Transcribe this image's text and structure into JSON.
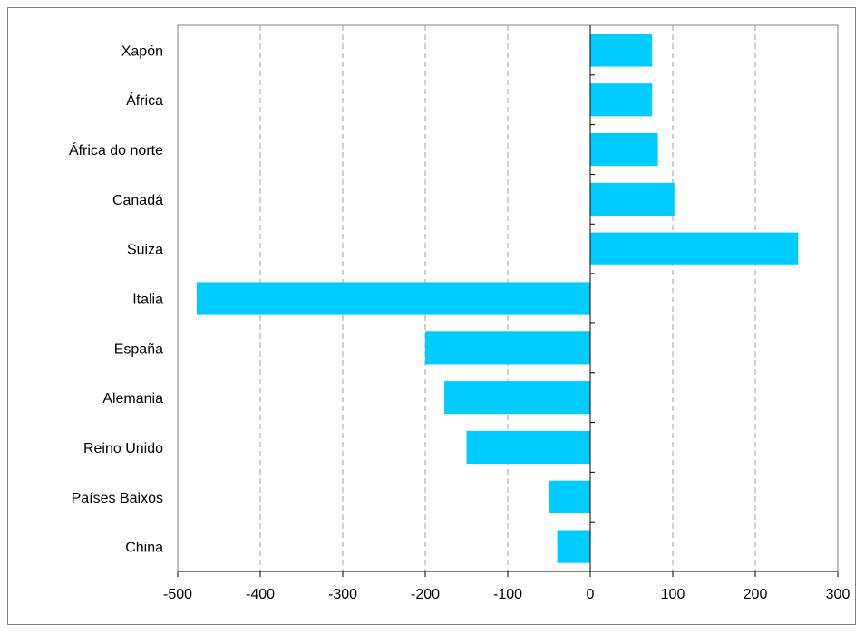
{
  "chart_data": {
    "type": "bar",
    "orientation": "horizontal",
    "categories": [
      "Xapón",
      "África",
      "África do norte",
      "Canadá",
      "Suiza",
      "Italia",
      "España",
      "Alemania",
      "Reino Unido",
      "Países Baixos",
      "China"
    ],
    "values": [
      75,
      75,
      82,
      102,
      252,
      -477,
      -200,
      -177,
      -150,
      -50,
      -40
    ],
    "xlim": [
      -500,
      300
    ],
    "xticks": [
      "-500",
      "-400",
      "-300",
      "-200",
      "-100",
      "0",
      "100",
      "200",
      "300"
    ],
    "grid": "vertical-dashed",
    "bar_color": "#00ccff",
    "title": "",
    "xlabel": "",
    "ylabel": ""
  }
}
